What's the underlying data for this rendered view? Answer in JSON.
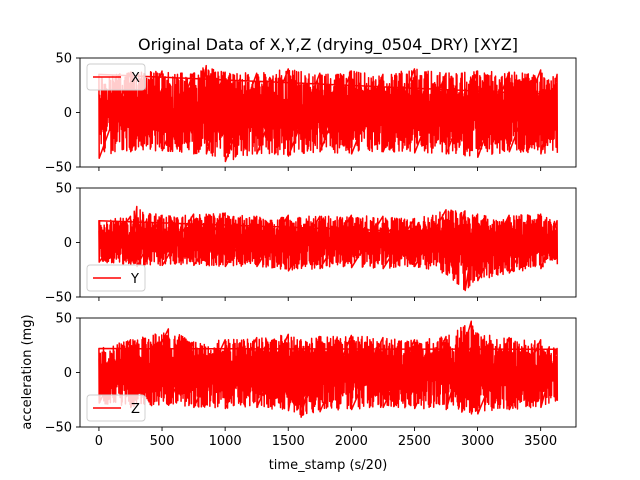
{
  "chart_data": {
    "type": "line",
    "title": "Original Data of X,Y,Z (drying_0504_DRY) [XYZ]",
    "xlabel": "time_stamp (s/20)",
    "ylabel": "acceleration (mg)",
    "xlim": [
      -150,
      3780
    ],
    "xticks": [
      0,
      500,
      1000,
      1500,
      2000,
      2500,
      3000,
      3500
    ],
    "x_range": [
      0,
      3630
    ],
    "line_color": "#ff0000",
    "grid": false,
    "panels": [
      {
        "series_name": "X",
        "legend_loc": "upper left",
        "ylim": [
          -50,
          50
        ],
        "yticks": [
          -50,
          0,
          50
        ],
        "envelope": {
          "x": [
            0,
            250,
            500,
            750,
            850,
            1000,
            1250,
            1500,
            1750,
            2000,
            2250,
            2500,
            2750,
            3000,
            3250,
            3500,
            3630
          ],
          "upper": [
            35,
            37,
            38,
            36,
            43,
            37,
            36,
            40,
            36,
            38,
            35,
            40,
            36,
            38,
            37,
            39,
            35
          ],
          "lower": [
            -42,
            -36,
            -35,
            -38,
            -38,
            -45,
            -38,
            -40,
            -36,
            -38,
            -36,
            -37,
            -38,
            -41,
            -36,
            -38,
            -37
          ]
        }
      },
      {
        "series_name": "Y",
        "legend_loc": "lower left",
        "ylim": [
          -50,
          50
        ],
        "yticks": [
          -50,
          0,
          50
        ],
        "envelope": {
          "x": [
            0,
            250,
            300,
            500,
            750,
            1000,
            1250,
            1500,
            1750,
            2000,
            2250,
            2500,
            2750,
            2900,
            3000,
            3250,
            3500,
            3630
          ],
          "upper": [
            20,
            24,
            33,
            25,
            26,
            27,
            24,
            25,
            24,
            25,
            24,
            22,
            30,
            29,
            26,
            25,
            26,
            20
          ],
          "lower": [
            -18,
            -20,
            -22,
            -21,
            -21,
            -22,
            -22,
            -26,
            -24,
            -23,
            -24,
            -22,
            -29,
            -44,
            -35,
            -28,
            -24,
            -20
          ]
        }
      },
      {
        "series_name": "Z",
        "legend_loc": "lower left",
        "ylim": [
          -50,
          50
        ],
        "yticks": [
          -50,
          0,
          50
        ],
        "envelope": {
          "x": [
            0,
            250,
            550,
            750,
            1000,
            1250,
            1500,
            1600,
            1750,
            2000,
            2250,
            2500,
            2750,
            2950,
            3000,
            3250,
            3500,
            3630
          ],
          "upper": [
            22,
            30,
            40,
            28,
            30,
            32,
            35,
            30,
            33,
            34,
            32,
            30,
            33,
            47,
            36,
            32,
            30,
            22
          ],
          "lower": [
            -28,
            -32,
            -30,
            -32,
            -33,
            -32,
            -35,
            -41,
            -36,
            -34,
            -32,
            -33,
            -34,
            -38,
            -38,
            -34,
            -32,
            -26
          ]
        }
      }
    ]
  }
}
